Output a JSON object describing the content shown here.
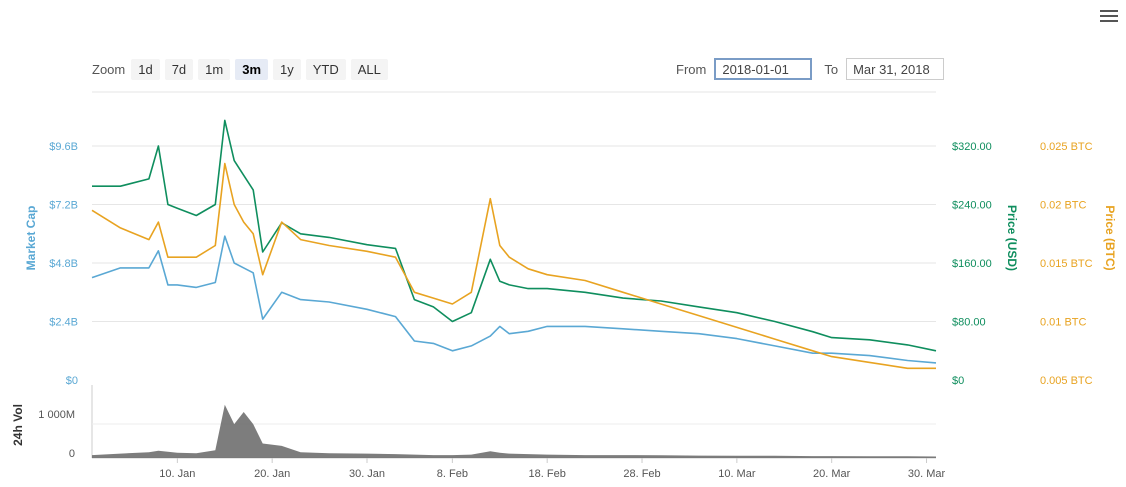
{
  "toolbar": {
    "zoom_label": "Zoom",
    "zoom_options": [
      "1d",
      "7d",
      "1m",
      "3m",
      "1y",
      "YTD",
      "ALL"
    ],
    "active_zoom": "3m",
    "from_label": "From",
    "from_value": "2018-01-01",
    "to_label": "To",
    "to_value": "Mar 31, 2018"
  },
  "colors": {
    "market_cap": "#5aa8d4",
    "price_usd": "#0f8e5e",
    "price_btc": "#e8a321",
    "volume": "#666666"
  },
  "chart_data": {
    "type": "line",
    "x_range": [
      "2018-01-01",
      "2018-03-31"
    ],
    "x_tick_labels": [
      "10. Jan",
      "20. Jan",
      "30. Jan",
      "8. Feb",
      "18. Feb",
      "28. Feb",
      "10. Mar",
      "20. Mar",
      "30. Mar"
    ],
    "axes": {
      "market_cap": {
        "label": "Market Cap",
        "ticks": [
          "$0",
          "$2.4B",
          "$4.8B",
          "$7.2B",
          "$9.6B"
        ],
        "range": [
          0,
          9.6
        ]
      },
      "price_usd": {
        "label": "Price (USD)",
        "ticks": [
          "$0",
          "$80.00",
          "$160.00",
          "$240.00",
          "$320.00"
        ],
        "range": [
          0,
          320
        ]
      },
      "price_btc": {
        "label": "Price (BTC)",
        "ticks": [
          "0.005 BTC",
          "0.01 BTC",
          "0.015 BTC",
          "0.02 BTC",
          "0.025 BTC"
        ],
        "range": [
          0.005,
          0.025
        ]
      },
      "volume": {
        "label": "24h Vol",
        "ticks": [
          "0",
          "1 000M"
        ]
      }
    },
    "dates": [
      "2018-01-01",
      "2018-01-04",
      "2018-01-07",
      "2018-01-08",
      "2018-01-09",
      "2018-01-10",
      "2018-01-12",
      "2018-01-14",
      "2018-01-15",
      "2018-01-16",
      "2018-01-17",
      "2018-01-18",
      "2018-01-19",
      "2018-01-21",
      "2018-01-23",
      "2018-01-26",
      "2018-01-30",
      "2018-02-02",
      "2018-02-04",
      "2018-02-06",
      "2018-02-08",
      "2018-02-10",
      "2018-02-12",
      "2018-02-13",
      "2018-02-14",
      "2018-02-16",
      "2018-02-18",
      "2018-02-22",
      "2018-02-26",
      "2018-03-02",
      "2018-03-06",
      "2018-03-10",
      "2018-03-14",
      "2018-03-18",
      "2018-03-20",
      "2018-03-24",
      "2018-03-28",
      "2018-03-31"
    ],
    "series": [
      {
        "key": "market_cap",
        "axis": "market_cap",
        "name": "Market Cap",
        "values": [
          4.2,
          4.6,
          4.6,
          5.3,
          3.9,
          3.9,
          3.8,
          4.0,
          5.9,
          4.8,
          4.6,
          4.4,
          2.5,
          3.6,
          3.3,
          3.2,
          2.9,
          2.6,
          1.6,
          1.5,
          1.2,
          1.4,
          1.8,
          2.2,
          1.9,
          2.0,
          2.2,
          2.2,
          2.1,
          2.0,
          1.9,
          1.7,
          1.4,
          1.1,
          1.1,
          1.0,
          0.8,
          0.7
        ]
      },
      {
        "key": "price_usd",
        "axis": "price_usd",
        "name": "Price (USD)",
        "values": [
          265,
          265,
          275,
          320,
          240,
          235,
          225,
          240,
          355,
          300,
          280,
          260,
          175,
          215,
          200,
          195,
          185,
          180,
          110,
          100,
          80,
          92,
          165,
          135,
          130,
          125,
          125,
          120,
          112,
          108,
          100,
          92,
          80,
          66,
          58,
          55,
          48,
          40
        ]
      },
      {
        "key": "price_btc",
        "axis": "price_btc",
        "name": "Price (BTC)",
        "values": [
          0.0195,
          0.018,
          0.017,
          0.0185,
          0.0155,
          0.0155,
          0.0155,
          0.0165,
          0.0235,
          0.02,
          0.0185,
          0.0175,
          0.014,
          0.0185,
          0.017,
          0.0165,
          0.016,
          0.0155,
          0.0125,
          0.012,
          0.0115,
          0.0125,
          0.0205,
          0.0165,
          0.0155,
          0.0145,
          0.014,
          0.0135,
          0.0125,
          0.0115,
          0.0105,
          0.0095,
          0.0085,
          0.0075,
          0.007,
          0.0065,
          0.006,
          0.006
        ]
      },
      {
        "key": "volume",
        "axis": "volume",
        "name": "24h Vol",
        "values": [
          60,
          90,
          120,
          150,
          130,
          110,
          100,
          160,
          1100,
          700,
          950,
          700,
          300,
          250,
          120,
          100,
          90,
          80,
          70,
          60,
          60,
          70,
          140,
          110,
          90,
          80,
          70,
          60,
          60,
          55,
          50,
          45,
          45,
          40,
          40,
          35,
          35,
          30
        ]
      }
    ]
  }
}
